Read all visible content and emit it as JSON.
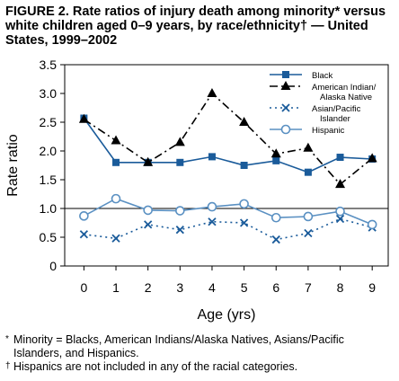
{
  "title": "FIGURE 2. Rate ratios of injury death among minority* versus white children aged 0–9 years, by race/ethnicity† — United States, 1999–2002",
  "chart_data": {
    "type": "line",
    "xlabel": "Age (yrs)",
    "ylabel": "Rate ratio",
    "x": [
      0,
      1,
      2,
      3,
      4,
      5,
      6,
      7,
      8,
      9
    ],
    "xlim": [
      -0.6,
      9.5
    ],
    "ylim": [
      0,
      3.5
    ],
    "yticks": [
      "0",
      "0.5",
      "1.0",
      "1.5",
      "2.0",
      "2.5",
      "3.0",
      "3.5"
    ],
    "reference_line": 1.0,
    "grid": false,
    "legend_position": "top-right",
    "series": [
      {
        "name": "Black",
        "color": "#1a5b9a",
        "dash": "solid",
        "marker": "square",
        "values": [
          2.57,
          1.8,
          1.8,
          1.8,
          1.9,
          1.75,
          1.83,
          1.63,
          1.89,
          1.86
        ]
      },
      {
        "name": "American Indian/ Alaska Native",
        "color": "#000000",
        "dash": "dashdot",
        "marker": "triangle",
        "values": [
          2.55,
          2.18,
          1.8,
          2.15,
          3.0,
          2.5,
          1.95,
          2.05,
          1.42,
          1.87
        ]
      },
      {
        "name": "Asian/Pacific Islander",
        "color": "#1a5b9a",
        "dash": "dotted",
        "marker": "x",
        "values": [
          0.55,
          0.48,
          0.72,
          0.63,
          0.77,
          0.75,
          0.46,
          0.57,
          0.82,
          0.67
        ]
      },
      {
        "name": "Hispanic",
        "color": "#5a90c2",
        "dash": "solid",
        "marker": "circle",
        "values": [
          0.87,
          1.17,
          0.97,
          0.96,
          1.03,
          1.08,
          0.84,
          0.86,
          0.95,
          0.72
        ]
      }
    ],
    "legend_lines": [
      [
        "Black"
      ],
      [
        "American Indian/",
        "Alaska Native"
      ],
      [
        "Asian/Pacific",
        "Islander"
      ],
      [
        "Hispanic"
      ]
    ]
  },
  "footnotes": {
    "minority_symbol": "*",
    "minority_text": "Minority = Blacks, American Indians/Alaska Natives, Asians/Pacific",
    "minority_text2": "Islanders, and Hispanics.",
    "hispanic_symbol": "†",
    "hispanic_text": "Hispanics are not included in any of the racial categories."
  }
}
